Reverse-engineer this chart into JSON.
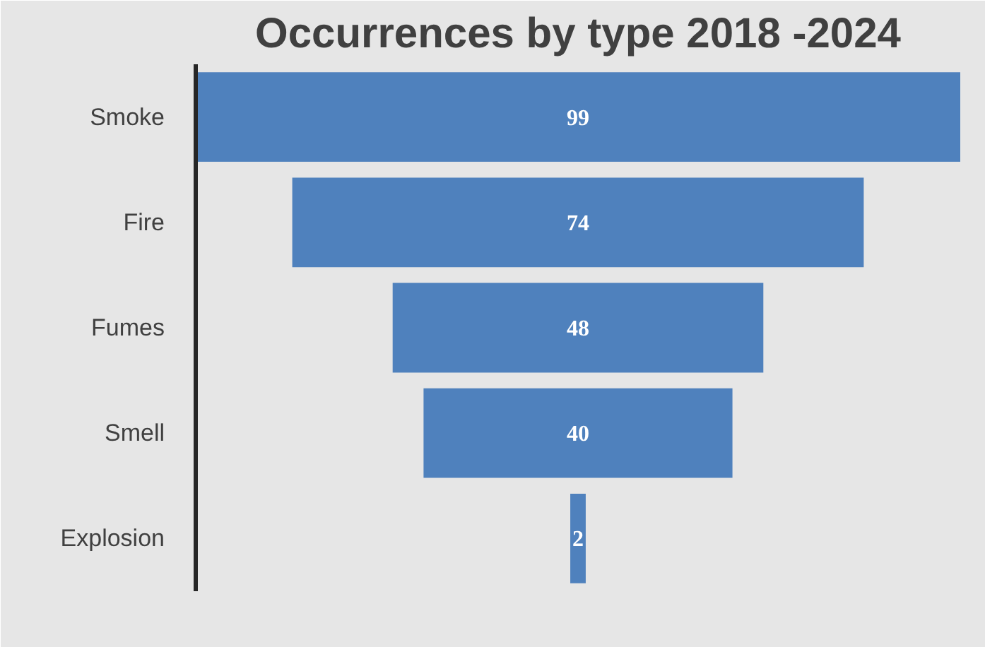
{
  "chart_data": {
    "type": "other",
    "title": "Occurrences by type 2018 -2024",
    "categories": [
      "Smoke",
      "Fire",
      "Fumes",
      "Smell",
      "Explosion"
    ],
    "values": [
      99,
      74,
      48,
      40,
      2
    ],
    "color": "#4f81bd",
    "data_labels": true
  }
}
